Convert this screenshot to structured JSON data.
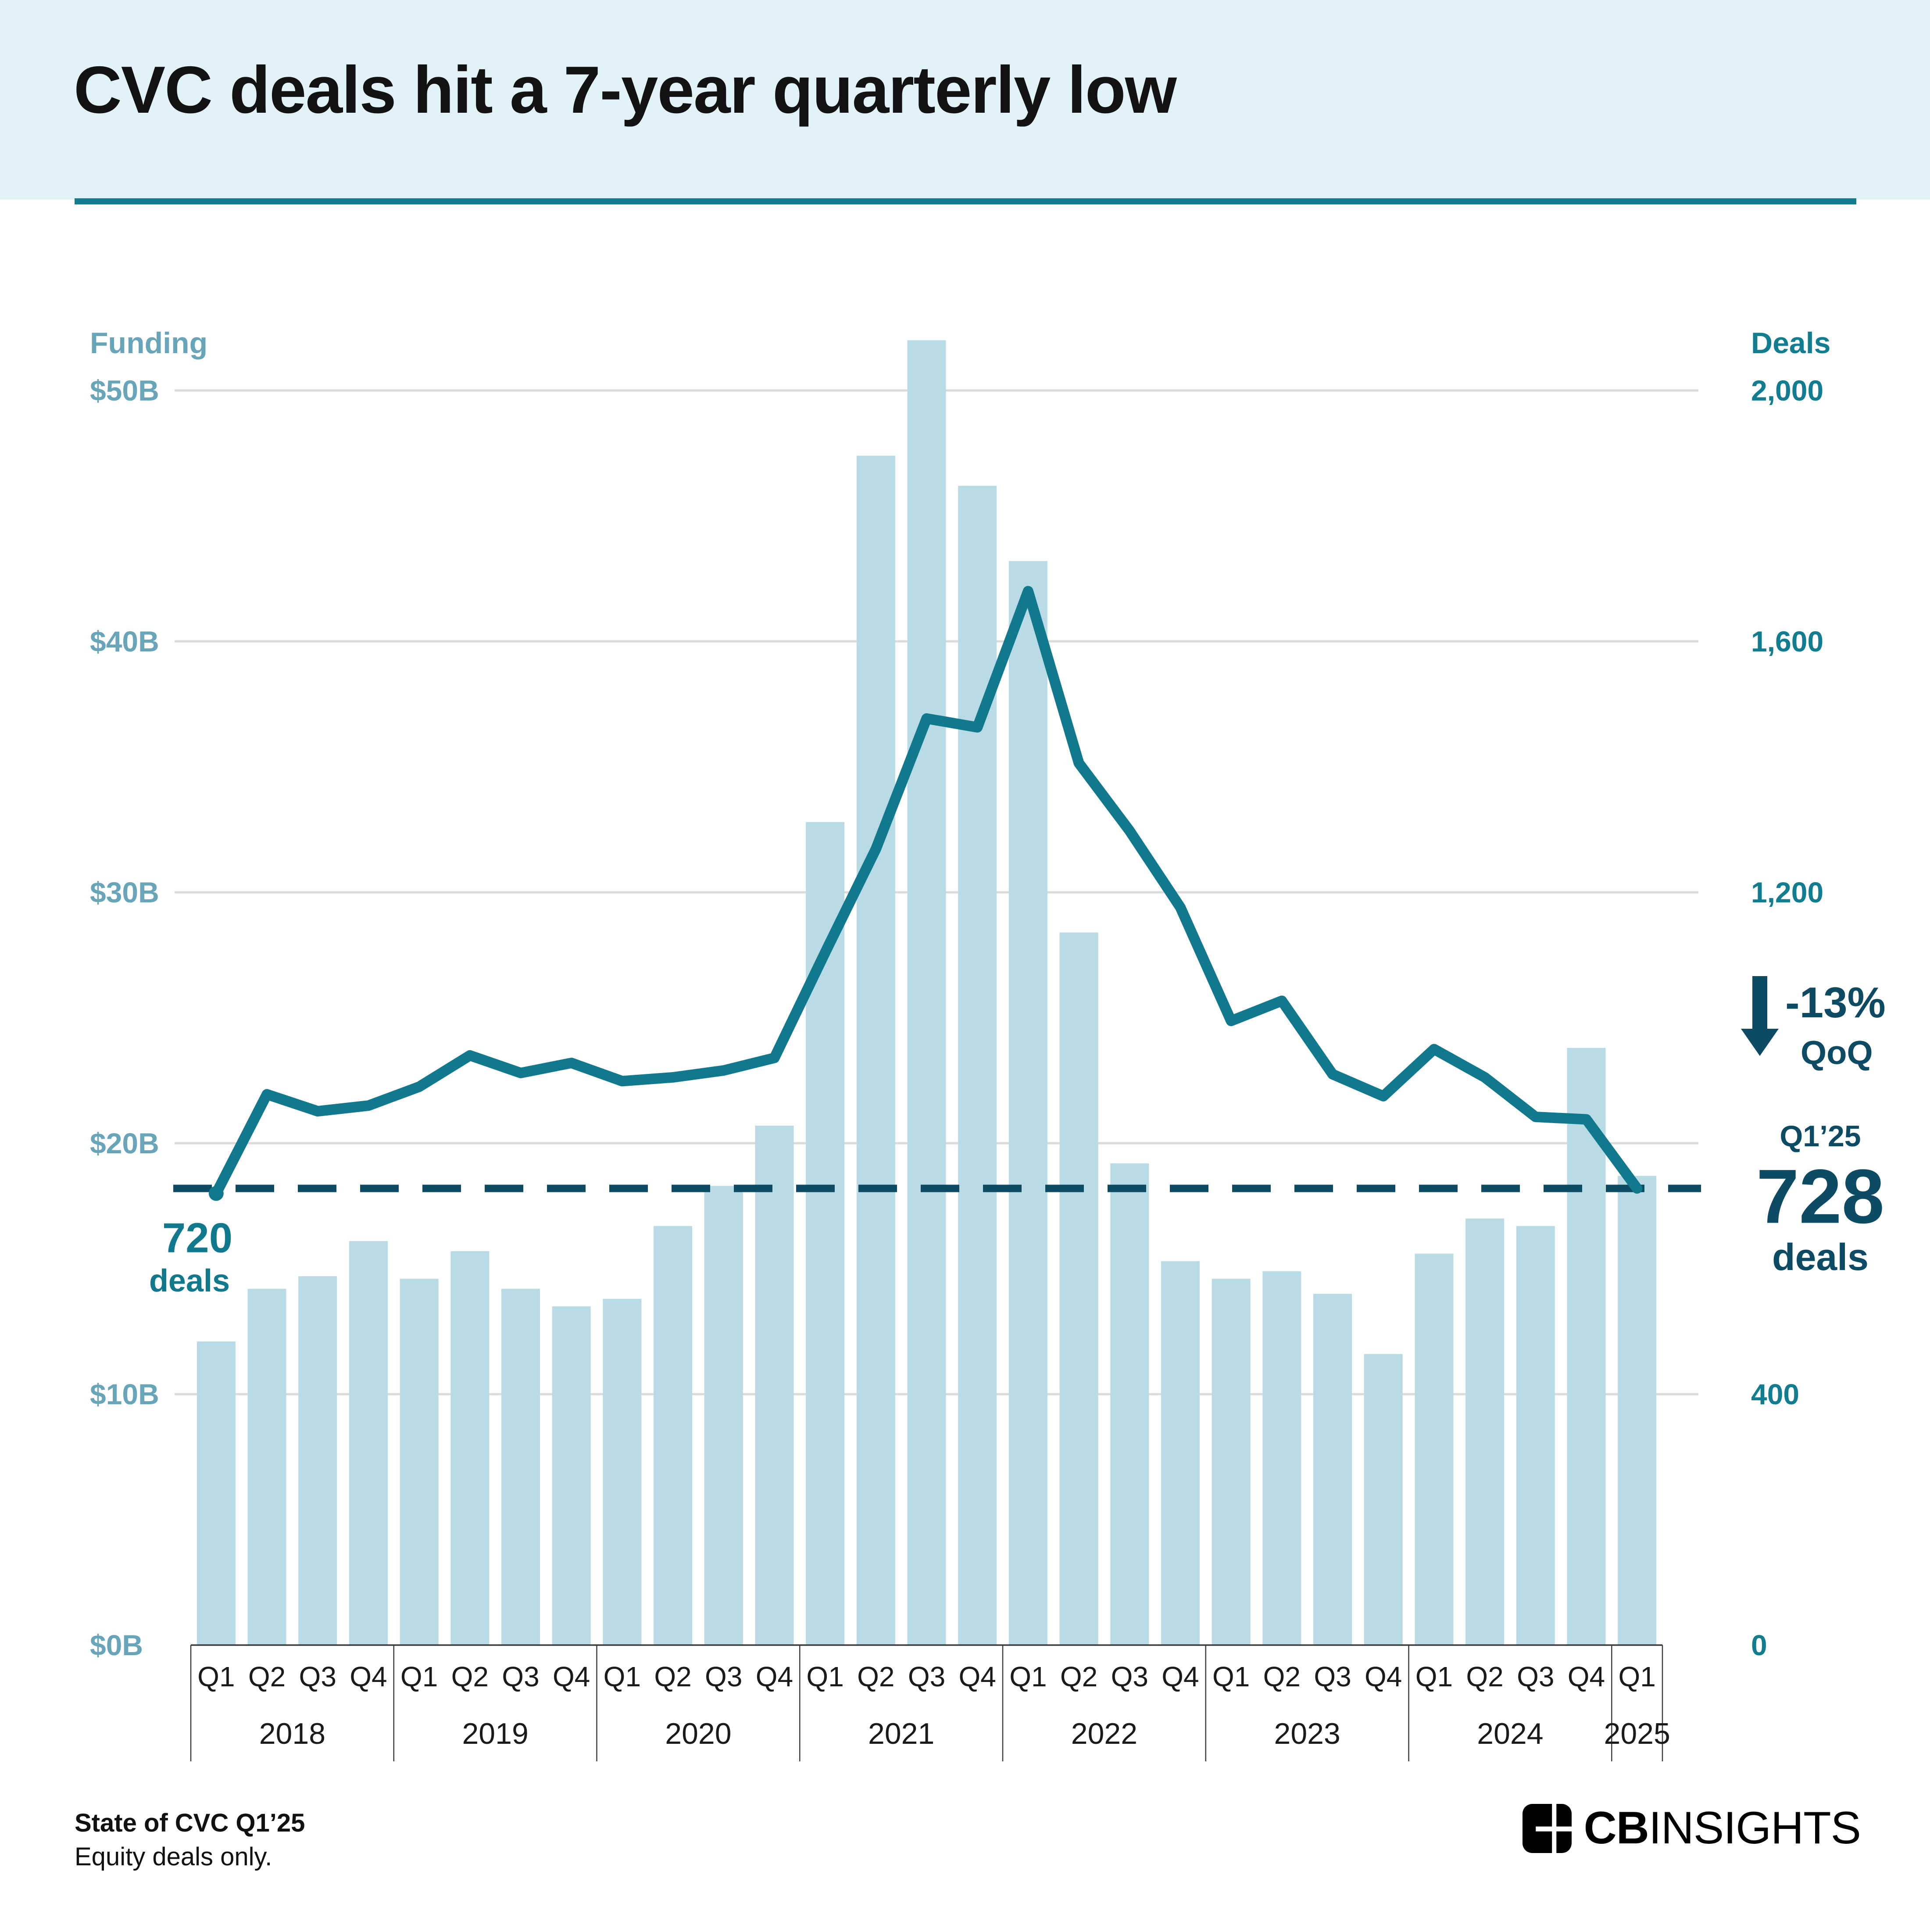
{
  "header": {
    "title": "CVC deals hit a 7-year quarterly low"
  },
  "axes": {
    "funding_title": "Funding",
    "deals_title": "Deals"
  },
  "chart_data": {
    "type": "bar+line combo",
    "title": "CVC deals hit a 7-year quarterly low",
    "grid": "horizontal gridlines on",
    "legend_position": "none",
    "funding_axis": {
      "side": "left",
      "label": "Funding",
      "range_billions": [
        0,
        55
      ],
      "ticks": [
        {
          "label": "$50B",
          "value": 50
        },
        {
          "label": "$40B",
          "value": 40
        },
        {
          "label": "$30B",
          "value": 30
        },
        {
          "label": "$20B",
          "value": 20
        },
        {
          "label": "$10B",
          "value": 10
        },
        {
          "label": "$0B",
          "value": 0
        }
      ]
    },
    "deals_axis": {
      "side": "right",
      "label": "Deals",
      "range": [
        0,
        2200
      ],
      "ticks": [
        {
          "label": "2,000",
          "value": 2000
        },
        {
          "label": "1,600",
          "value": 1600
        },
        {
          "label": "1,200",
          "value": 1200
        },
        {
          "label": "400",
          "value": 400
        },
        {
          "label": "0",
          "value": 0
        }
      ]
    },
    "years": [
      {
        "year": "2018",
        "quarters": [
          "Q1",
          "Q2",
          "Q3",
          "Q4"
        ]
      },
      {
        "year": "2019",
        "quarters": [
          "Q1",
          "Q2",
          "Q3",
          "Q4"
        ]
      },
      {
        "year": "2020",
        "quarters": [
          "Q1",
          "Q2",
          "Q3",
          "Q4"
        ]
      },
      {
        "year": "2021",
        "quarters": [
          "Q1",
          "Q2",
          "Q3",
          "Q4"
        ]
      },
      {
        "year": "2022",
        "quarters": [
          "Q1",
          "Q2",
          "Q3",
          "Q4"
        ]
      },
      {
        "year": "2023",
        "quarters": [
          "Q1",
          "Q2",
          "Q3",
          "Q4"
        ]
      },
      {
        "year": "2024",
        "quarters": [
          "Q1",
          "Q2",
          "Q3",
          "Q4"
        ]
      },
      {
        "year": "2025",
        "quarters": [
          "Q1"
        ]
      }
    ],
    "series": [
      {
        "name": "Funding ($B, bars)",
        "type": "bar",
        "values": [
          12.1,
          14.2,
          14.7,
          16.1,
          14.6,
          15.7,
          14.2,
          13.5,
          13.8,
          16.7,
          18.3,
          20.7,
          32.8,
          47.4,
          52.0,
          46.2,
          43.2,
          28.4,
          19.2,
          15.3,
          14.6,
          14.9,
          14.0,
          11.6,
          15.6,
          17.0,
          16.7,
          23.8,
          18.7
        ]
      },
      {
        "name": "Deals (line)",
        "type": "line",
        "values": [
          720,
          878,
          851,
          860,
          890,
          940,
          912,
          928,
          899,
          905,
          916,
          936,
          1104,
          1269,
          1477,
          1463,
          1680,
          1406,
          1298,
          1176,
          995,
          1027,
          910,
          875,
          950,
          905,
          842,
          838,
          728
        ]
      }
    ],
    "reference_line": {
      "deals_value": 728,
      "style": "dashed"
    }
  },
  "annotations": {
    "start_value": "720",
    "start_unit": "deals",
    "qoq_value": "-13%",
    "qoq_label": "QoQ",
    "callout_quarter": "Q1’25",
    "callout_value": "728",
    "callout_unit": "deals"
  },
  "footer": {
    "source_bold": "State of CVC Q1’25",
    "source_note": "Equity deals only.",
    "brand_cb": "CB",
    "brand_insights": "INSIGHTS"
  },
  "colors": {
    "header_bg": "#e1f3f8",
    "title_color": "#121212",
    "divider_color": "#157c8f",
    "bar_fill": "#b8dbe5",
    "line_color": "#11798d",
    "reference_color": "#0d4a63",
    "funding_axis_text": "#69a5b9",
    "deals_axis_text": "#127c90",
    "gridline_color": "#dbdbdb",
    "axis_frame_color": "#3b3b3b",
    "x_label_color": "#1a1a1a"
  }
}
